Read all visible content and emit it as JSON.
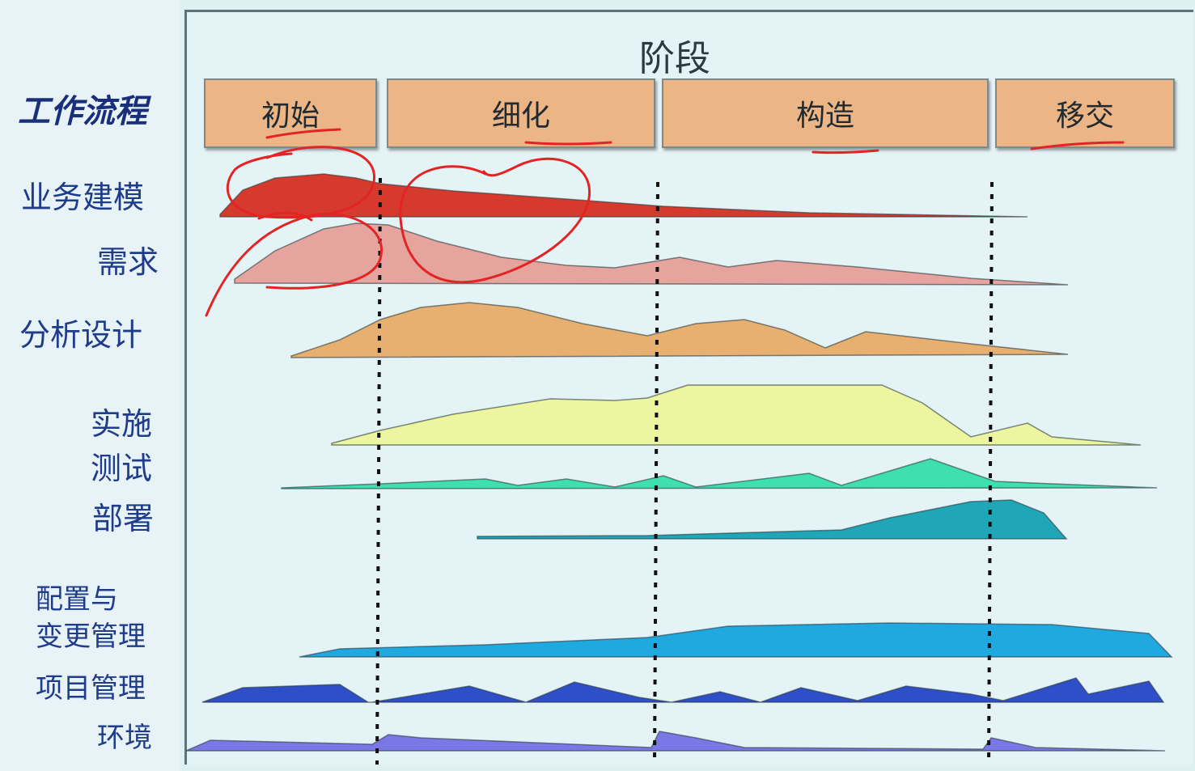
{
  "header": {
    "phase_title": "阶段",
    "workflow_title": "工作流程"
  },
  "phases": [
    {
      "label": "初始"
    },
    {
      "label": "细化"
    },
    {
      "label": "构造"
    },
    {
      "label": "移交"
    }
  ],
  "workflows": [
    {
      "label": "业务建模",
      "color": "#d63a2c"
    },
    {
      "label": "需求",
      "color": "#e5a59e"
    },
    {
      "label": "分析设计",
      "color": "#e8b070"
    },
    {
      "label": "实施",
      "color": "#ecf5a0"
    },
    {
      "label": "测试",
      "color": "#3ee0b0"
    },
    {
      "label": "部署",
      "color": "#1fa7b8"
    },
    {
      "label": "配置与",
      "label2": "变更管理",
      "color": "#20a8e0"
    },
    {
      "label": "项目管理",
      "color": "#2e4fc8"
    },
    {
      "label": "环境",
      "color": "#7a78e6"
    }
  ],
  "annotations": {
    "ink_color": "#e42424"
  }
}
